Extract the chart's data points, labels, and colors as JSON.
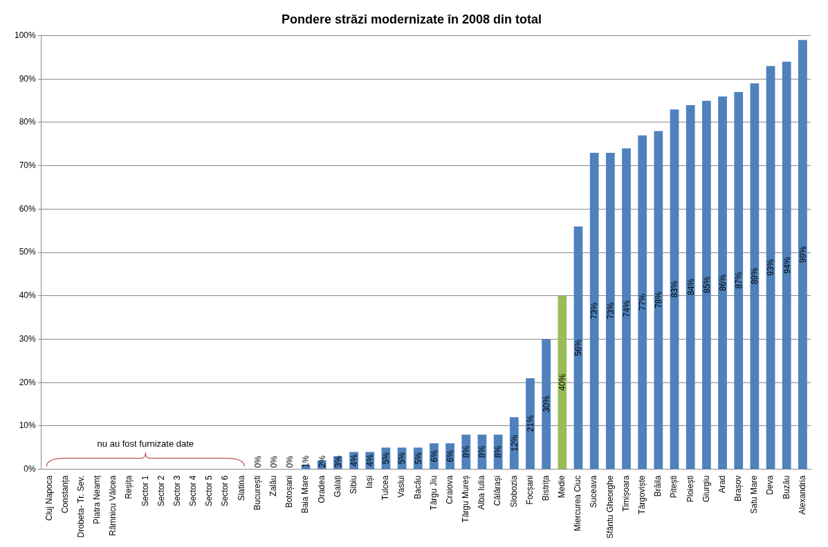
{
  "chart_data": {
    "type": "bar",
    "title": "Pondere străzi modernizate în 2008 din total",
    "categories": [
      "Cluj Napoca",
      "Constanța",
      "Drobeta- Tr. Sev.",
      "Piatra Neamț",
      "Râmnicu Vâlcea",
      "Reșița",
      "Sector 1",
      "Sector 2",
      "Sector 3",
      "Sector 4",
      "Sector 5",
      "Sector 6",
      "Slatina",
      "București",
      "Zalău",
      "Botoșani",
      "Baia Mare",
      "Oradea",
      "Galați",
      "Sibiu",
      "Iași",
      "Tulcea",
      "Vaslui",
      "Bacău",
      "Târgu Jiu",
      "Craiova",
      "Târgu Mureș",
      "Alba Iulia",
      "Călărași",
      "Slobozia",
      "Focșani",
      "Bistrița",
      "Medie",
      "Miercurea Ciuc",
      "Suceava",
      "Sfântu Gheorghe",
      "Timișoara",
      "Târgoviște",
      "Brăila",
      "Pitești",
      "Ploiești",
      "Giurgiu",
      "Arad",
      "Brașov",
      "Satu Mare",
      "Deva",
      "Buzău",
      "Alexandria"
    ],
    "values": [
      null,
      null,
      null,
      null,
      null,
      null,
      null,
      null,
      null,
      null,
      null,
      null,
      null,
      0,
      0,
      0,
      1,
      2,
      3,
      4,
      4,
      5,
      5,
      5,
      6,
      6,
      8,
      8,
      8,
      12,
      21,
      30,
      40,
      56,
      73,
      73,
      74,
      77,
      78,
      83,
      84,
      85,
      86,
      87,
      89,
      93,
      94,
      99
    ],
    "value_labels": [
      null,
      null,
      null,
      null,
      null,
      null,
      null,
      null,
      null,
      null,
      null,
      null,
      null,
      "0%",
      "0%",
      "0%",
      "1%",
      "2%",
      "3%",
      "4%",
      "4%",
      "5%",
      "5%",
      "5%",
      "6%",
      "6%",
      "8%",
      "8%",
      "8%",
      "12%",
      "21%",
      "30%",
      "40%",
      "56%",
      "73%",
      "73%",
      "74%",
      "77%",
      "78%",
      "83%",
      "84%",
      "85%",
      "86%",
      "87%",
      "89%",
      "93%",
      "94%",
      "99%"
    ],
    "colors": [
      "#4f81bd",
      "#4f81bd",
      "#4f81bd",
      "#4f81bd",
      "#4f81bd",
      "#4f81bd",
      "#4f81bd",
      "#4f81bd",
      "#4f81bd",
      "#4f81bd",
      "#4f81bd",
      "#4f81bd",
      "#4f81bd",
      "#4f81bd",
      "#4f81bd",
      "#4f81bd",
      "#4f81bd",
      "#4f81bd",
      "#4f81bd",
      "#4f81bd",
      "#4f81bd",
      "#4f81bd",
      "#4f81bd",
      "#4f81bd",
      "#4f81bd",
      "#4f81bd",
      "#4f81bd",
      "#4f81bd",
      "#4f81bd",
      "#4f81bd",
      "#4f81bd",
      "#4f81bd",
      "#9bbb59",
      "#4f81bd",
      "#4f81bd",
      "#4f81bd",
      "#4f81bd",
      "#4f81bd",
      "#4f81bd",
      "#4f81bd",
      "#4f81bd",
      "#4f81bd",
      "#4f81bd",
      "#4f81bd",
      "#4f81bd",
      "#4f81bd",
      "#4f81bd",
      "#4f81bd"
    ],
    "ylim": [
      0,
      100
    ],
    "yticks": [
      {
        "value": 0,
        "label": "0%"
      },
      {
        "value": 10,
        "label": "10%"
      },
      {
        "value": 20,
        "label": "20%"
      },
      {
        "value": 30,
        "label": "30%"
      },
      {
        "value": 40,
        "label": "40%"
      },
      {
        "value": 50,
        "label": "50%"
      },
      {
        "value": 60,
        "label": "60%"
      },
      {
        "value": 70,
        "label": "70%"
      },
      {
        "value": 80,
        "label": "80%"
      },
      {
        "value": 90,
        "label": "90%"
      },
      {
        "value": 100,
        "label": "100%"
      }
    ],
    "annotations": [
      "nu au fost furnizate date"
    ],
    "grid": "y",
    "legend": false
  }
}
